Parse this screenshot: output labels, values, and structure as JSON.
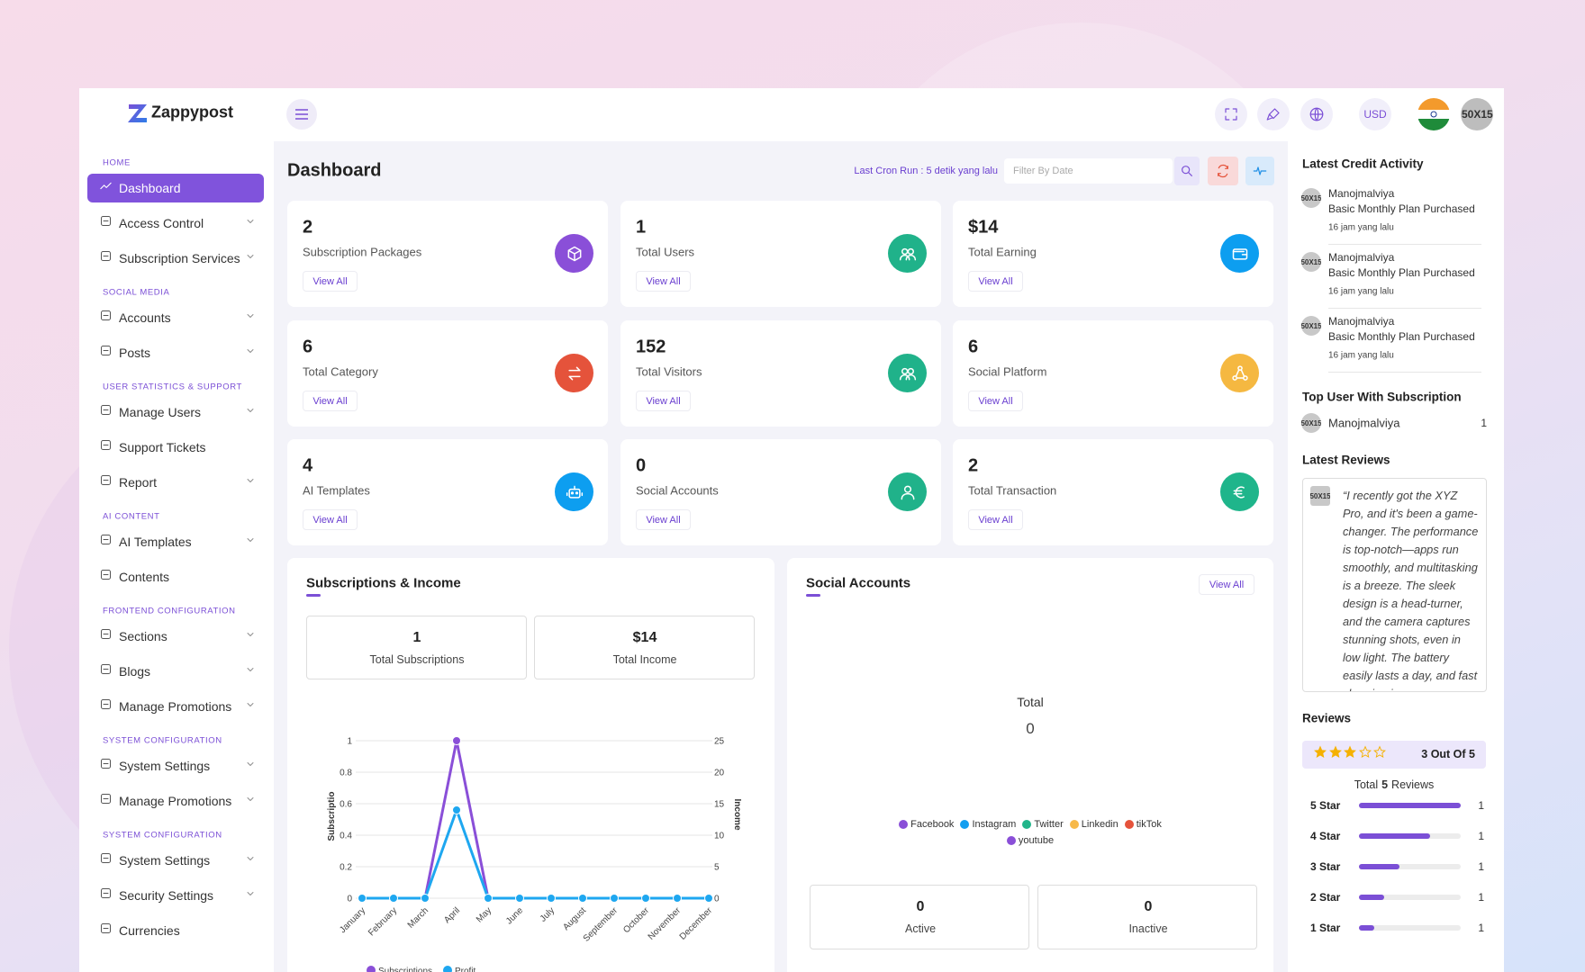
{
  "brand": {
    "name": "Zappypost"
  },
  "topbar": {
    "currency": "USD",
    "avatar": "50X15"
  },
  "sidebar": [
    {
      "section": "HOME",
      "items": [
        {
          "label": "Dashboard",
          "active": true,
          "expand": false
        },
        {
          "label": "Access Control",
          "expand": true
        },
        {
          "label": "Subscription Services",
          "expand": true
        }
      ]
    },
    {
      "section": "SOCIAL MEDIA",
      "items": [
        {
          "label": "Accounts",
          "expand": true
        },
        {
          "label": "Posts",
          "expand": true
        }
      ]
    },
    {
      "section": "USER STATISTICS & SUPPORT",
      "items": [
        {
          "label": "Manage Users",
          "expand": true
        },
        {
          "label": "Support Tickets",
          "expand": false
        },
        {
          "label": "Report",
          "expand": true
        }
      ]
    },
    {
      "section": "AI CONTENT",
      "items": [
        {
          "label": "AI Templates",
          "expand": true
        },
        {
          "label": "Contents",
          "expand": false
        }
      ]
    },
    {
      "section": "FRONTEND CONFIGURATION",
      "items": [
        {
          "label": "Sections",
          "expand": true
        },
        {
          "label": "Blogs",
          "expand": true
        },
        {
          "label": "Manage Promotions",
          "expand": true
        }
      ]
    },
    {
      "section": "SYSTEM CONFIGURATION",
      "items": [
        {
          "label": "System Settings",
          "expand": true
        },
        {
          "label": "Manage Promotions",
          "expand": true
        }
      ]
    },
    {
      "section": "SYSTEM CONFIGURATION",
      "items": [
        {
          "label": "System Settings",
          "expand": true
        },
        {
          "label": "Security Settings",
          "expand": true
        },
        {
          "label": "Currencies",
          "expand": false
        }
      ]
    }
  ],
  "page": {
    "title": "Dashboard",
    "cron": "Last Cron Run : 5 detik yang lalu",
    "filter_placeholder": "Filter By Date"
  },
  "stats": [
    {
      "value": "2",
      "label": "Subscription Packages",
      "link": "View All",
      "color": "#8a4fd8",
      "icon": "box"
    },
    {
      "value": "1",
      "label": "Total Users",
      "link": "View All",
      "color": "#20b28a",
      "icon": "users"
    },
    {
      "value": "$14",
      "label": "Total Earning",
      "link": "View All",
      "color": "#0d9ef0",
      "icon": "wallet"
    },
    {
      "value": "6",
      "label": "Total Category",
      "link": "View All",
      "color": "#e5533b",
      "icon": "swap"
    },
    {
      "value": "152",
      "label": "Total Visitors",
      "link": "View All",
      "color": "#20b28a",
      "icon": "users"
    },
    {
      "value": "6",
      "label": "Social Platform",
      "link": "View All",
      "color": "#f5b841",
      "icon": "share"
    },
    {
      "value": "4",
      "label": "AI Templates",
      "link": "View All",
      "color": "#0d9ef0",
      "icon": "robot"
    },
    {
      "value": "0",
      "label": "Social Accounts",
      "link": "View All",
      "color": "#20b28a",
      "icon": "user"
    },
    {
      "value": "2",
      "label": "Total Transaction",
      "link": "View All",
      "color": "#1fb58b",
      "icon": "euro"
    }
  ],
  "subscriptions_income": {
    "title": "Subscriptions & Income",
    "summary": [
      {
        "value": "1",
        "label": "Total Subscriptions"
      },
      {
        "value": "$14",
        "label": "Total Income"
      }
    ],
    "chart": {
      "type": "line",
      "categories": [
        "January",
        "February",
        "March",
        "April",
        "May",
        "June",
        "July",
        "August",
        "September",
        "October",
        "November",
        "December"
      ],
      "series": [
        {
          "name": "Subscriptions",
          "color": "#8a4fd8",
          "values": [
            0,
            0,
            0,
            1,
            0,
            0,
            0,
            0,
            0,
            0,
            0,
            0
          ]
        },
        {
          "name": "Profit",
          "color": "#1ea7f0",
          "axis": "y2",
          "values": [
            0,
            0,
            0,
            14,
            0,
            0,
            0,
            0,
            0,
            0,
            0,
            0
          ]
        }
      ],
      "ylabel": "Subscriptio",
      "y2label": "Income",
      "ylim": [
        0,
        1
      ],
      "yticks": [
        0,
        0.2,
        0.4,
        0.6,
        0.8,
        1
      ],
      "y2lim": [
        0,
        25
      ],
      "y2ticks": [
        0,
        5,
        10,
        15,
        20,
        25
      ],
      "grid": true
    }
  },
  "social_accounts": {
    "title": "Social Accounts",
    "link": "View All",
    "total_label": "Total",
    "total": "0",
    "legend": [
      {
        "name": "Facebook",
        "color": "#8a4fd8"
      },
      {
        "name": "Instagram",
        "color": "#139ef0"
      },
      {
        "name": "Twitter",
        "color": "#22b58a"
      },
      {
        "name": "Linkedin",
        "color": "#f7b94a"
      },
      {
        "name": "tikTok",
        "color": "#e5533b"
      },
      {
        "name": "youtube",
        "color": "#8a4fd8"
      }
    ],
    "summary": [
      {
        "value": "0",
        "label": "Active"
      },
      {
        "value": "0",
        "label": "Inactive"
      }
    ]
  },
  "right": {
    "credit": {
      "title": "Latest Credit Activity",
      "items": [
        {
          "avatar": "50X15",
          "name": "Manojmalviya",
          "text": "Basic Monthly Plan Purchased",
          "time": "16 jam yang lalu"
        },
        {
          "avatar": "50X15",
          "name": "Manojmalviya",
          "text": "Basic Monthly Plan Purchased",
          "time": "16 jam yang lalu"
        },
        {
          "avatar": "50X15",
          "name": "Manojmalviya",
          "text": "Basic Monthly Plan Purchased",
          "time": "16 jam yang lalu"
        }
      ]
    },
    "top_users": {
      "title": "Top User With Subscription",
      "items": [
        {
          "avatar": "50X15",
          "name": "Manojmalviya",
          "count": "1"
        }
      ]
    },
    "latest_reviews": {
      "title": "Latest Reviews",
      "avatar": "50X15",
      "text": "“I recently got the XYZ Pro, and it's been a game-changer. The performance is top-notch—apps run smoothly, and multitasking is a breeze. The sleek design is a head-turner, and the camera captures stunning shots, even in low light. The battery easily lasts a day, and fast charging is a"
    },
    "reviews": {
      "title": "Reviews",
      "rating": 3,
      "max": 5,
      "rating_label": "3 Out Of 5",
      "total_label": "Total",
      "total": "5",
      "total_suffix": "Reviews",
      "rows": [
        {
          "label": "5 Star",
          "percent": 100,
          "count": "1"
        },
        {
          "label": "4 Star",
          "percent": 70,
          "count": "1"
        },
        {
          "label": "3 Star",
          "percent": 40,
          "count": "1"
        },
        {
          "label": "2 Star",
          "percent": 25,
          "count": "1"
        },
        {
          "label": "1 Star",
          "percent": 15,
          "count": "1"
        }
      ]
    }
  }
}
